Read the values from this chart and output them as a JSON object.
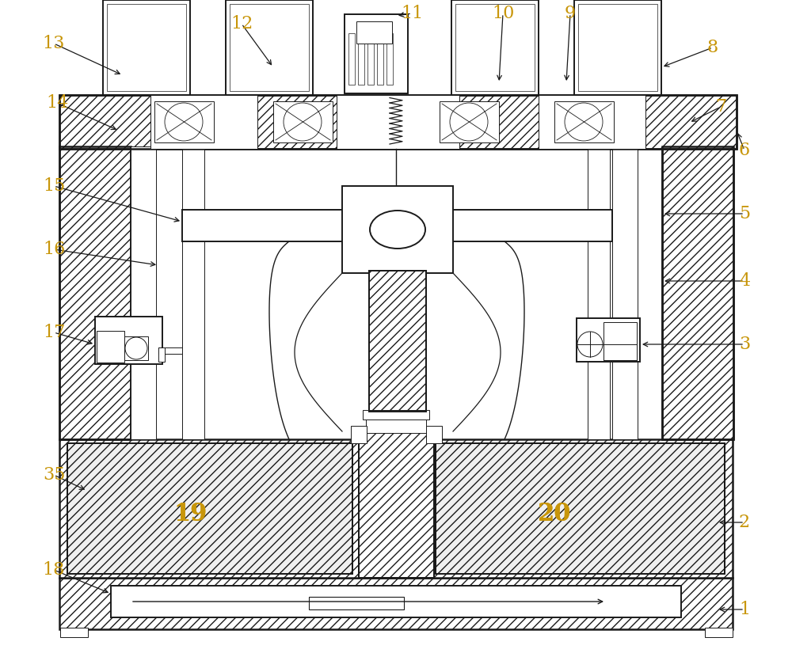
{
  "bg": "#ffffff",
  "lc": "#1a1a1a",
  "label_color": "#c8960a",
  "lw_main": 1.4,
  "lw_thick": 1.8,
  "lw_thin": 0.7,
  "label_fs": 16
}
